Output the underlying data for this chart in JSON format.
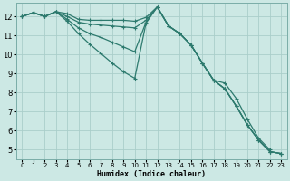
{
  "title": "",
  "xlabel": "Humidex (Indice chaleur)",
  "xlim": [
    -0.5,
    23.5
  ],
  "ylim": [
    4.5,
    12.7
  ],
  "yticks": [
    5,
    6,
    7,
    8,
    9,
    10,
    11,
    12
  ],
  "xticks": [
    0,
    1,
    2,
    3,
    4,
    5,
    6,
    7,
    8,
    9,
    10,
    11,
    12,
    13,
    14,
    15,
    16,
    17,
    18,
    19,
    20,
    21,
    22,
    23
  ],
  "background_color": "#cce8e4",
  "grid_color": "#aaceca",
  "line_color": "#2d7a6e",
  "series": [
    [
      12.0,
      12.2,
      12.0,
      12.25,
      12.15,
      11.85,
      11.8,
      11.8,
      11.8,
      11.8,
      11.75,
      11.95,
      12.5,
      11.5,
      11.1,
      10.5,
      9.55,
      8.65,
      8.2,
      7.3,
      6.3,
      5.5,
      4.9,
      4.8
    ],
    [
      12.0,
      12.2,
      12.0,
      12.25,
      12.0,
      11.7,
      11.6,
      11.55,
      11.5,
      11.45,
      11.4,
      11.8,
      12.5,
      11.5,
      11.1,
      10.5,
      9.55,
      8.65,
      8.5,
      7.7,
      6.6,
      5.6,
      5.0,
      null
    ],
    [
      12.0,
      12.2,
      12.0,
      12.25,
      11.85,
      11.4,
      11.1,
      10.9,
      10.65,
      10.4,
      10.15,
      11.7,
      12.5,
      11.5,
      11.1,
      10.5,
      9.55,
      8.65,
      8.2,
      7.3,
      6.3,
      5.5,
      4.9,
      4.8
    ],
    [
      12.0,
      12.2,
      12.0,
      12.25,
      11.75,
      11.1,
      10.55,
      10.05,
      9.55,
      9.1,
      8.75,
      11.65,
      12.5,
      11.5,
      11.1,
      10.5,
      9.55,
      8.65,
      8.2,
      7.3,
      6.3,
      5.5,
      4.9,
      4.8
    ]
  ],
  "markersize": 2.5,
  "linewidth": 0.9
}
